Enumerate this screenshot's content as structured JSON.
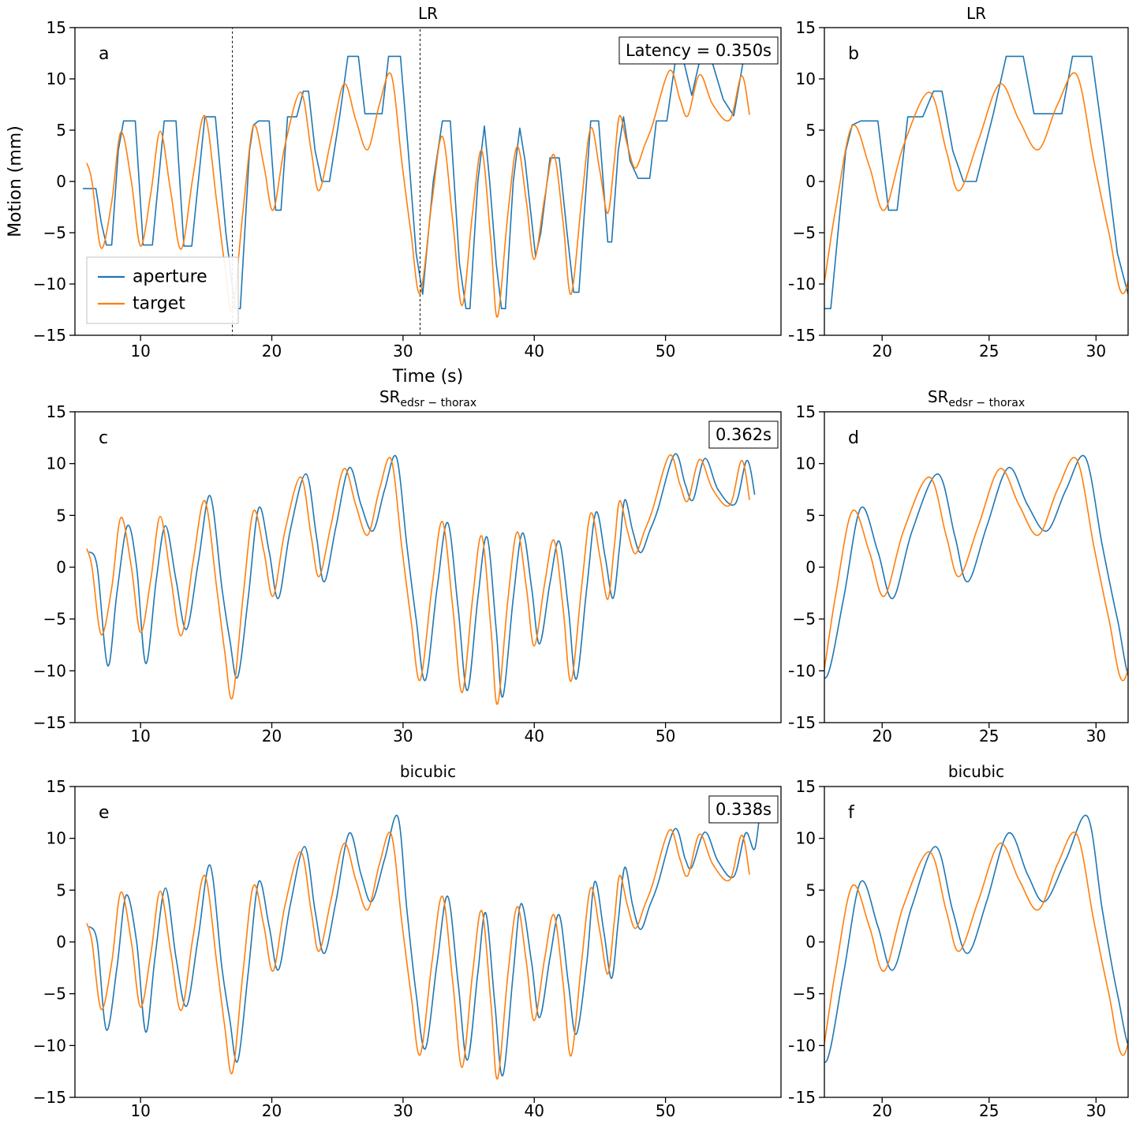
{
  "figure": {
    "xlabel": "Time (s)",
    "ylabel": "Motion (mm)",
    "background": "#ffffff",
    "axis_color": "#000000",
    "legend": {
      "position": "lower-left-of-panel-a",
      "items": [
        {
          "label": "aperture",
          "color": "#1f77b4"
        },
        {
          "label": "target",
          "color": "#ff7f0e"
        }
      ]
    }
  },
  "chart_data": [
    {
      "type": "line",
      "title": {
        "main": "LR",
        "sub": ""
      },
      "ylim": [
        -15,
        15
      ],
      "yticks": [
        -15,
        -10,
        -5,
        0,
        5,
        10,
        15
      ],
      "panels": {
        "left": {
          "letter": "a",
          "xlim": [
            5.0,
            58.8
          ],
          "xticks": [
            10,
            20,
            30,
            40,
            50
          ],
          "annotation": "Latency = 0.350s",
          "zoom_box": [
            17.0,
            31.3
          ],
          "show_legend": true,
          "show_xlabel": true,
          "show_ylabel": true
        },
        "right": {
          "letter": "b",
          "xlim": [
            17.3,
            31.5
          ],
          "xticks": [
            20,
            25,
            30
          ]
        }
      },
      "series": [
        {
          "name": "aperture",
          "color": "#1f77b4",
          "interp": "linear",
          "x": [
            5.6,
            6.6,
            7.0,
            7.4,
            7.8,
            8.3,
            8.7,
            9.6,
            10.2,
            10.9,
            11.8,
            12.7,
            13.3,
            13.9,
            14.9,
            15.7,
            16.5,
            17.2,
            17.6,
            18.3,
            18.6,
            19.0,
            19.8,
            20.3,
            20.7,
            21.2,
            21.9,
            22.4,
            22.8,
            23.3,
            23.8,
            24.4,
            25.2,
            25.8,
            26.6,
            27.1,
            28.4,
            28.9,
            29.8,
            30.4,
            31.0,
            31.5,
            32.3,
            33.0,
            33.6,
            34.3,
            34.8,
            35.1,
            35.7,
            36.2,
            36.6,
            37.1,
            37.5,
            37.8,
            38.4,
            38.9,
            39.3,
            40.1,
            40.5,
            41.2,
            41.9,
            42.5,
            43.0,
            43.4,
            44.3,
            44.9,
            45.6,
            45.9,
            46.4,
            46.8,
            47.3,
            47.9,
            48.8,
            49.3,
            50.1,
            50.8,
            51.3,
            52.0,
            52.7,
            53.4,
            54.4,
            55.2,
            56.0,
            56.5
          ],
          "y": [
            -0.7,
            -0.7,
            -4.0,
            -6.2,
            -6.2,
            3.0,
            5.9,
            5.9,
            -6.2,
            -6.2,
            5.9,
            5.9,
            -6.3,
            -6.3,
            6.3,
            6.3,
            -5.0,
            -12.4,
            -12.4,
            3.0,
            5.5,
            5.9,
            5.9,
            -2.8,
            -2.8,
            6.3,
            6.3,
            8.8,
            8.8,
            3.0,
            0.0,
            0.0,
            6.6,
            12.2,
            12.2,
            6.6,
            6.6,
            12.2,
            12.2,
            3.0,
            -7.0,
            -11.0,
            0.0,
            5.9,
            5.9,
            -8.0,
            -12.4,
            -12.4,
            0.0,
            5.4,
            0.0,
            -8.0,
            -12.4,
            -12.4,
            0.0,
            5.2,
            2.0,
            -7.3,
            -5.0,
            2.3,
            2.3,
            -5.0,
            -10.8,
            -10.8,
            5.9,
            5.9,
            -5.9,
            -5.9,
            3.0,
            6.3,
            2.0,
            0.3,
            0.3,
            5.9,
            5.9,
            12.2,
            12.2,
            8.4,
            12.3,
            12.3,
            8.0,
            6.4,
            12.3,
            12.3
          ]
        },
        {
          "name": "target",
          "color": "#ff7f0e",
          "interp": "smooth",
          "x": [
            5.9,
            6.3,
            7.0,
            7.8,
            8.5,
            9.3,
            10.0,
            10.8,
            11.5,
            12.3,
            13.1,
            14.0,
            14.9,
            15.8,
            16.4,
            17.0,
            17.8,
            18.6,
            19.4,
            20.1,
            21.0,
            22.2,
            23.0,
            23.6,
            24.5,
            25.5,
            26.4,
            27.3,
            28.2,
            29.1,
            29.9,
            30.6,
            31.3,
            32.2,
            33.0,
            33.8,
            34.5,
            35.3,
            36.0,
            36.7,
            37.2,
            38.0,
            38.7,
            39.4,
            40.0,
            40.8,
            41.5,
            42.2,
            42.8,
            43.6,
            44.3,
            45.0,
            45.6,
            46.1,
            46.5,
            47.1,
            47.7,
            48.4,
            49.0,
            50.3,
            51.1,
            51.7,
            52.6,
            53.6,
            54.9,
            55.8,
            56.4
          ],
          "y": [
            1.8,
            0.0,
            -6.5,
            -2.0,
            4.8,
            0.0,
            -6.3,
            -1.0,
            4.9,
            -1.0,
            -6.6,
            0.5,
            6.4,
            -2.0,
            -8.0,
            -12.6,
            -3.0,
            5.4,
            1.5,
            -2.8,
            3.5,
            8.7,
            3.0,
            -0.9,
            4.0,
            9.5,
            6.0,
            3.1,
            7.5,
            10.4,
            2.0,
            -5.0,
            -10.9,
            -2.0,
            4.4,
            -4.0,
            -12.1,
            -3.0,
            3.0,
            -6.0,
            -13.2,
            -3.0,
            3.4,
            -2.0,
            -7.6,
            -1.5,
            2.6,
            -4.0,
            -11.0,
            -2.0,
            5.2,
            1.0,
            -3.1,
            2.0,
            6.4,
            3.5,
            1.3,
            3.5,
            5.5,
            10.8,
            8.0,
            6.4,
            10.4,
            7.5,
            6.0,
            10.3,
            6.5
          ]
        }
      ]
    },
    {
      "type": "line",
      "title": {
        "main": "SR",
        "sub": "edsr − thorax"
      },
      "ylim": [
        -15,
        15
      ],
      "yticks": [
        -15,
        -10,
        -5,
        0,
        5,
        10,
        15
      ],
      "panels": {
        "left": {
          "letter": "c",
          "xlim": [
            5.0,
            58.8
          ],
          "xticks": [
            10,
            20,
            30,
            40,
            50
          ],
          "annotation": "0.362s"
        },
        "right": {
          "letter": "d",
          "xlim": [
            17.3,
            31.5
          ],
          "xticks": [
            20,
            25,
            30
          ]
        }
      },
      "series": [
        {
          "name": "aperture",
          "color": "#1f77b4",
          "interp": "smooth",
          "x": [
            6.1,
            6.7,
            7.5,
            8.2,
            9.0,
            9.7,
            10.4,
            11.2,
            11.9,
            12.7,
            13.5,
            14.4,
            15.3,
            16.2,
            16.8,
            17.4,
            18.2,
            19.0,
            19.8,
            20.5,
            21.4,
            22.6,
            23.4,
            24.0,
            24.9,
            25.9,
            26.8,
            27.7,
            28.6,
            29.5,
            30.3,
            31.0,
            31.7,
            32.6,
            33.4,
            34.2,
            34.9,
            35.7,
            36.4,
            37.1,
            37.6,
            38.4,
            39.1,
            39.8,
            40.4,
            41.2,
            41.9,
            42.6,
            43.2,
            44.0,
            44.7,
            45.4,
            46.0,
            46.5,
            46.9,
            47.5,
            48.1,
            48.8,
            49.4,
            50.7,
            51.5,
            52.1,
            53.0,
            54.0,
            55.3,
            56.2,
            56.8
          ],
          "y": [
            1.5,
            0.0,
            -9.5,
            -2.5,
            4.0,
            0.0,
            -9.3,
            -1.2,
            4.0,
            -1.2,
            -6.0,
            0.5,
            6.9,
            -2.0,
            -7.0,
            -10.6,
            -3.0,
            5.7,
            1.5,
            -3.0,
            3.5,
            9.0,
            3.0,
            -1.4,
            4.0,
            9.6,
            6.0,
            3.5,
            7.5,
            10.6,
            2.0,
            -5.0,
            -10.9,
            -2.0,
            4.3,
            -4.0,
            -11.9,
            -3.0,
            2.9,
            -6.0,
            -12.5,
            -3.0,
            3.3,
            -2.0,
            -7.4,
            -1.5,
            2.5,
            -4.0,
            -10.8,
            -2.0,
            5.3,
            1.0,
            -3.0,
            2.0,
            6.5,
            3.5,
            1.4,
            3.5,
            5.5,
            10.9,
            8.0,
            6.5,
            10.5,
            7.5,
            6.1,
            10.3,
            7.0
          ]
        },
        {
          "name": "target",
          "color": "#ff7f0e",
          "interp": "smooth",
          "x": [
            5.9,
            6.3,
            7.0,
            7.8,
            8.5,
            9.3,
            10.0,
            10.8,
            11.5,
            12.3,
            13.1,
            14.0,
            14.9,
            15.8,
            16.4,
            17.0,
            17.8,
            18.6,
            19.4,
            20.1,
            21.0,
            22.2,
            23.0,
            23.6,
            24.5,
            25.5,
            26.4,
            27.3,
            28.2,
            29.1,
            29.9,
            30.6,
            31.3,
            32.2,
            33.0,
            33.8,
            34.5,
            35.3,
            36.0,
            36.7,
            37.2,
            38.0,
            38.7,
            39.4,
            40.0,
            40.8,
            41.5,
            42.2,
            42.8,
            43.6,
            44.3,
            45.0,
            45.6,
            46.1,
            46.5,
            47.1,
            47.7,
            48.4,
            49.0,
            50.3,
            51.1,
            51.7,
            52.6,
            53.6,
            54.9,
            55.8,
            56.4
          ],
          "y": [
            1.8,
            0.0,
            -6.5,
            -2.0,
            4.8,
            0.0,
            -6.3,
            -1.0,
            4.9,
            -1.0,
            -6.6,
            0.5,
            6.4,
            -2.0,
            -8.0,
            -12.6,
            -3.0,
            5.4,
            1.5,
            -2.8,
            3.5,
            8.7,
            3.0,
            -0.9,
            4.0,
            9.5,
            6.0,
            3.1,
            7.5,
            10.4,
            2.0,
            -5.0,
            -10.9,
            -2.0,
            4.4,
            -4.0,
            -12.1,
            -3.0,
            3.0,
            -6.0,
            -13.2,
            -3.0,
            3.4,
            -2.0,
            -7.6,
            -1.5,
            2.6,
            -4.0,
            -11.0,
            -2.0,
            5.2,
            1.0,
            -3.1,
            2.0,
            6.4,
            3.5,
            1.3,
            3.5,
            5.5,
            10.8,
            8.0,
            6.4,
            10.4,
            7.5,
            6.0,
            10.3,
            6.5
          ]
        }
      ]
    },
    {
      "type": "line",
      "title": {
        "main": "bicubic",
        "sub": ""
      },
      "ylim": [
        -15,
        15
      ],
      "yticks": [
        -15,
        -10,
        -5,
        0,
        5,
        10,
        15
      ],
      "panels": {
        "left": {
          "letter": "e",
          "xlim": [
            5.0,
            58.8
          ],
          "xticks": [
            10,
            20,
            30,
            40,
            50
          ],
          "annotation": "0.338s"
        },
        "right": {
          "letter": "f",
          "xlim": [
            17.3,
            31.5
          ],
          "xticks": [
            20,
            25,
            30
          ]
        }
      },
      "series": [
        {
          "name": "aperture",
          "color": "#1f77b4",
          "interp": "smooth",
          "x": [
            6.1,
            6.7,
            7.4,
            8.2,
            8.9,
            9.7,
            10.4,
            11.1,
            11.9,
            12.7,
            13.5,
            14.4,
            15.3,
            16.2,
            16.8,
            17.4,
            18.2,
            19.0,
            19.8,
            20.5,
            21.4,
            22.5,
            23.3,
            24.0,
            24.9,
            25.9,
            26.8,
            27.6,
            28.6,
            29.6,
            30.3,
            31.0,
            31.7,
            32.6,
            33.4,
            34.2,
            34.9,
            35.7,
            36.3,
            37.0,
            37.6,
            38.4,
            39.0,
            39.8,
            40.4,
            41.2,
            41.9,
            42.6,
            43.2,
            44.0,
            44.6,
            45.3,
            45.9,
            46.4,
            46.9,
            47.5,
            48.1,
            48.8,
            49.4,
            50.7,
            51.5,
            52.0,
            53.0,
            54.0,
            55.2,
            56.1,
            56.8,
            57.3
          ],
          "y": [
            1.5,
            0.0,
            -8.5,
            -2.5,
            4.5,
            0.0,
            -8.7,
            -1.5,
            5.2,
            -1.5,
            -6.2,
            0.5,
            7.4,
            -2.5,
            -7.5,
            -11.5,
            -3.0,
            5.8,
            1.5,
            -2.7,
            3.5,
            9.2,
            3.0,
            -1.1,
            4.0,
            10.5,
            6.5,
            3.9,
            8.0,
            12.1,
            3.0,
            -5.0,
            -10.3,
            -2.0,
            4.4,
            -4.0,
            -11.4,
            -3.0,
            2.8,
            -6.0,
            -12.9,
            -3.0,
            3.7,
            -2.0,
            -7.3,
            -1.5,
            2.6,
            -4.0,
            -8.9,
            -2.0,
            5.8,
            1.0,
            -3.5,
            2.0,
            7.2,
            3.5,
            1.2,
            3.5,
            5.5,
            10.9,
            8.0,
            7.2,
            10.6,
            7.8,
            6.3,
            10.5,
            9.0,
            14.0
          ]
        },
        {
          "name": "target",
          "color": "#ff7f0e",
          "interp": "smooth",
          "x": [
            5.9,
            6.3,
            7.0,
            7.8,
            8.5,
            9.3,
            10.0,
            10.8,
            11.5,
            12.3,
            13.1,
            14.0,
            14.9,
            15.8,
            16.4,
            17.0,
            17.8,
            18.6,
            19.4,
            20.1,
            21.0,
            22.2,
            23.0,
            23.6,
            24.5,
            25.5,
            26.4,
            27.3,
            28.2,
            29.1,
            29.9,
            30.6,
            31.3,
            32.2,
            33.0,
            33.8,
            34.5,
            35.3,
            36.0,
            36.7,
            37.2,
            38.0,
            38.7,
            39.4,
            40.0,
            40.8,
            41.5,
            42.2,
            42.8,
            43.6,
            44.3,
            45.0,
            45.6,
            46.1,
            46.5,
            47.1,
            47.7,
            48.4,
            49.0,
            50.3,
            51.1,
            51.7,
            52.6,
            53.6,
            54.9,
            55.8,
            56.4
          ],
          "y": [
            1.8,
            0.0,
            -6.5,
            -2.0,
            4.8,
            0.0,
            -6.3,
            -1.0,
            4.9,
            -1.0,
            -6.6,
            0.5,
            6.4,
            -2.0,
            -8.0,
            -12.6,
            -3.0,
            5.4,
            1.5,
            -2.8,
            3.5,
            8.7,
            3.0,
            -0.9,
            4.0,
            9.5,
            6.0,
            3.1,
            7.5,
            10.4,
            2.0,
            -5.0,
            -10.9,
            -2.0,
            4.4,
            -4.0,
            -12.1,
            -3.0,
            3.0,
            -6.0,
            -13.2,
            -3.0,
            3.4,
            -2.0,
            -7.6,
            -1.5,
            2.6,
            -4.0,
            -11.0,
            -2.0,
            5.2,
            1.0,
            -3.1,
            2.0,
            6.4,
            3.5,
            1.3,
            3.5,
            5.5,
            10.8,
            8.0,
            6.4,
            10.4,
            7.5,
            6.0,
            10.3,
            6.5
          ]
        }
      ]
    }
  ]
}
